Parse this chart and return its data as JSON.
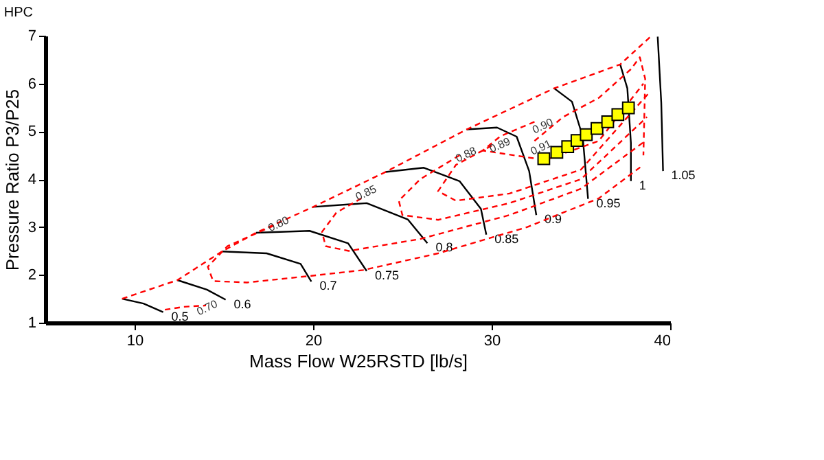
{
  "chart_data": {
    "type": "line",
    "title": "HPC",
    "xlabel": "Mass Flow W25RSTD [lb/s]",
    "ylabel": "Pressure Ratio P3/P25",
    "xlim": [
      5,
      40
    ],
    "ylim": [
      1,
      7
    ],
    "xticks": [
      10,
      20,
      30,
      40
    ],
    "yticks": [
      1,
      2,
      3,
      4,
      5,
      6,
      7
    ],
    "grid": false,
    "series": [
      {
        "name": "0.5",
        "color": "#000000",
        "line_style": "solid",
        "x": [
          9.3,
          10.5,
          11.6
        ],
        "values": [
          1.5,
          1.4,
          1.22
        ]
      },
      {
        "name": "0.6",
        "color": "#000000",
        "line_style": "solid",
        "x": [
          12.4,
          14.05,
          15.1
        ],
        "values": [
          1.89,
          1.69,
          1.48
        ]
      },
      {
        "name": "0.7",
        "color": "#000000",
        "line_style": "solid",
        "x": [
          14.9,
          17.4,
          19.3,
          19.9
        ],
        "values": [
          2.49,
          2.45,
          2.23,
          1.86
        ]
      },
      {
        "name": "0.75",
        "color": "#000000",
        "line_style": "solid",
        "x": [
          16.8,
          19.8,
          21.96,
          23.0
        ],
        "values": [
          2.88,
          2.92,
          2.66,
          2.08
        ]
      },
      {
        "name": "0.8",
        "color": "#000000",
        "line_style": "solid",
        "x": [
          20.0,
          23.0,
          25.3,
          26.4
        ],
        "values": [
          3.42,
          3.5,
          3.16,
          2.66
        ]
      },
      {
        "name": "0.85",
        "color": "#000000",
        "line_style": "solid",
        "x": [
          24.05,
          26.2,
          28.2,
          29.4,
          29.7
        ],
        "values": [
          4.15,
          4.24,
          3.96,
          3.38,
          2.84
        ]
      },
      {
        "name": "0.9",
        "color": "#000000",
        "line_style": "solid",
        "x": [
          28.6,
          30.3,
          31.4,
          32.1,
          32.5
        ],
        "values": [
          5.04,
          5.08,
          4.89,
          4.17,
          3.25
        ]
      },
      {
        "name": "0.95",
        "color": "#000000",
        "line_style": "solid",
        "x": [
          33.5,
          34.5,
          35.1,
          35.4
        ],
        "values": [
          5.9,
          5.62,
          4.89,
          3.59
        ]
      },
      {
        "name": "1",
        "color": "#000000",
        "line_style": "solid",
        "x": [
          37.2,
          37.6,
          37.8,
          37.8
        ],
        "values": [
          6.4,
          5.9,
          4.76,
          3.96
        ]
      },
      {
        "name": "1.05",
        "color": "#000000",
        "line_style": "solid",
        "x": [
          39.3,
          39.5,
          39.6
        ],
        "values": [
          6.98,
          5.6,
          4.17
        ]
      },
      {
        "type": "line",
        "color": "#ff0000",
        "line_style": "dashed",
        "x": [
          9.3,
          12.4,
          14.9,
          16.8,
          20.0,
          24.05,
          28.6,
          33.5,
          37.2,
          38.9
        ],
        "values": [
          1.5,
          1.89,
          2.49,
          2.88,
          3.42,
          4.15,
          5.04,
          5.9,
          6.4,
          6.98
        ]
      },
      {
        "type": "line",
        "color": "#ff0000",
        "line_style": "dashed",
        "x": [
          11.7,
          12.7,
          14.0
        ],
        "values": [
          1.27,
          1.33,
          1.36
        ]
      },
      {
        "type": "line",
        "color": "#ff0000",
        "line_style": "dashed",
        "x": [
          17.8,
          15.2,
          14.1,
          14.4,
          16.3,
          19.9,
          22.8,
          27,
          32,
          36,
          38.5
        ],
        "values": [
          3.03,
          2.6,
          2.17,
          1.87,
          1.84,
          1.98,
          2.1,
          2.45,
          3.0,
          3.6,
          4.3
        ]
      },
      {
        "type": "line",
        "color": "#ff0000",
        "line_style": "dashed",
        "x": [
          22.7,
          21.3,
          20.5,
          20.7,
          22,
          26,
          31,
          35,
          38.6
        ],
        "values": [
          3.6,
          3.3,
          2.9,
          2.6,
          2.5,
          2.75,
          3.25,
          3.8,
          4.8
        ]
      },
      {
        "type": "line",
        "color": "#ff0000",
        "line_style": "dashed",
        "x": [
          28.2,
          26,
          24.8,
          25,
          27,
          31,
          35,
          38.7
        ],
        "values": [
          4.5,
          4.0,
          3.55,
          3.25,
          3.15,
          3.5,
          4.0,
          5.3
        ]
      },
      {
        "type": "line",
        "color": "#ff0000",
        "line_style": "dashed",
        "x": [
          30,
          28,
          27,
          28,
          31,
          35,
          38.8
        ],
        "values": [
          4.7,
          4.3,
          3.75,
          3.55,
          3.7,
          4.2,
          5.8
        ]
      },
      {
        "type": "line",
        "color": "#ff0000",
        "line_style": "dashed",
        "x": [
          32.4,
          30.5,
          29.5,
          33,
          36,
          38.5
        ],
        "values": [
          5.2,
          4.9,
          4.6,
          4.4,
          4.8,
          6.0
        ]
      },
      {
        "type": "line",
        "color": "#ff0000",
        "line_style": "dashed",
        "x": [
          32.4,
          34,
          36,
          37.8,
          38.3,
          38.6,
          38.5
        ],
        "values": [
          4.8,
          5.3,
          5.7,
          6.3,
          6.55,
          6.1,
          4.5
        ]
      },
      {
        "type": "scatter",
        "color": "#ffff00",
        "marker": "square",
        "x": [
          32.92,
          33.65,
          34.26,
          34.78,
          35.3,
          35.9,
          36.5,
          37.07,
          37.66
        ],
        "values": [
          4.43,
          4.56,
          4.68,
          4.81,
          4.93,
          5.06,
          5.2,
          5.35,
          5.49
        ]
      }
    ],
    "annotations": [
      {
        "text": "0.70",
        "x": 13.8,
        "y": 1.25
      },
      {
        "text": "0.80",
        "x": 17.8,
        "y": 3.0
      },
      {
        "text": "0.85",
        "x": 22.7,
        "y": 3.65
      },
      {
        "text": "0.88",
        "x": 28.3,
        "y": 4.45
      },
      {
        "text": "0.89",
        "x": 30.2,
        "y": 4.65
      },
      {
        "text": "0.90",
        "x": 32.6,
        "y": 5.05
      },
      {
        "text": "0.91",
        "x": 32.5,
        "y": 4.6
      }
    ]
  }
}
